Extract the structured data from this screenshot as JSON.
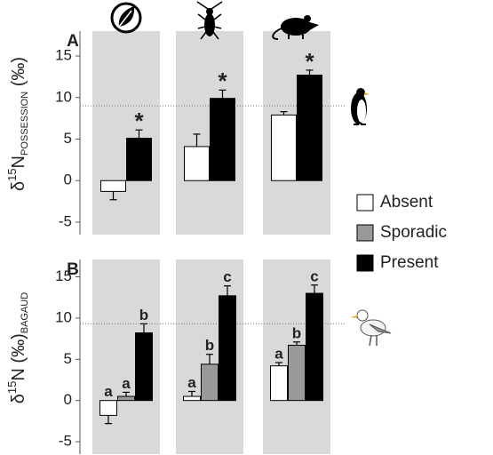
{
  "chart_data": [
    {
      "type": "bar",
      "panel": "A",
      "ylabel": [
        {
          "text": "δ"
        },
        {
          "text": "15",
          "style": "sup"
        },
        {
          "text": "N"
        },
        {
          "text": "POSSESSION",
          "style": "sub"
        },
        {
          "text": " (‰)"
        }
      ],
      "categories": [
        null,
        null,
        null
      ],
      "series": [
        {
          "name": "Absent",
          "color": "#ffffff",
          "values": [
            -1.3,
            4.1,
            7.9
          ],
          "errors": [
            1.0,
            1.5,
            0.4
          ],
          "labels": [
            null,
            null,
            null
          ]
        },
        {
          "name": "Present",
          "color": "#000000",
          "values": [
            5.1,
            9.9,
            12.7
          ],
          "errors": [
            1.0,
            1.0,
            0.6
          ],
          "labels": [
            "*",
            "*",
            "*"
          ]
        }
      ],
      "reference_line": 9,
      "ylim": [
        -6.5,
        18
      ],
      "yticks": [
        -5,
        0,
        5,
        10,
        15
      ]
    },
    {
      "type": "bar",
      "panel": "B",
      "ylabel": [
        {
          "text": "δ"
        },
        {
          "text": "15",
          "style": "sup"
        },
        {
          "text": "N (‰)"
        },
        {
          "text": "BAGAUD",
          "style": "sub"
        }
      ],
      "categories": [
        null,
        null,
        null
      ],
      "series": [
        {
          "name": "Absent",
          "color": "#ffffff",
          "values": [
            -1.8,
            0.5,
            4.2
          ],
          "errors": [
            1.0,
            0.6,
            0.4
          ],
          "labels": [
            "a",
            "a",
            "a"
          ]
        },
        {
          "name": "Sporadic",
          "color": "#999999",
          "values": [
            0.5,
            4.4,
            6.7
          ],
          "errors": [
            0.5,
            1.2,
            0.4
          ],
          "labels": [
            "a",
            "b",
            "b"
          ]
        },
        {
          "name": "Present",
          "color": "#000000",
          "values": [
            8.2,
            12.7,
            13.0
          ],
          "errors": [
            1.1,
            1.2,
            1.0
          ],
          "labels": [
            "b",
            "c",
            "c"
          ]
        }
      ],
      "reference_line": 9.3,
      "ylim": [
        -6.5,
        17.1
      ],
      "yticks": [
        -5,
        0,
        5,
        10,
        15
      ]
    }
  ]
}
